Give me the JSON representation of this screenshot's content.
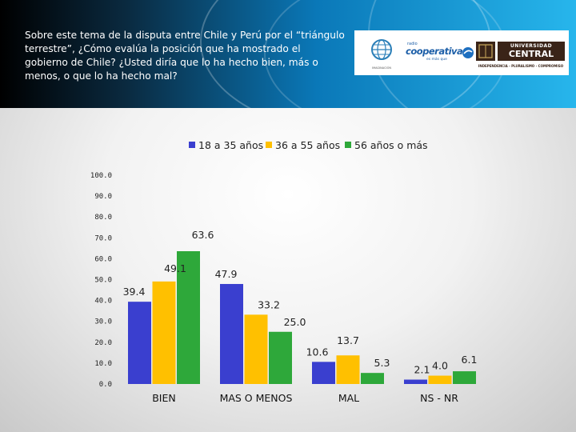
{
  "header": {
    "question": "Sobre este tema de la disputa entre Chile y Perú por el “triángulo terrestre”, ¿Cómo evalúa la posición que ha mostrado el gobierno de Chile? ¿Usted diría que lo ha hecho bien, más o menos, o que lo ha hecho mal?"
  },
  "logos": {
    "cooperativa": {
      "small": "radio",
      "main": "cooperativa",
      "sub": "es más que"
    },
    "imaginacion": {
      "text": "IMAGINACIÓN"
    },
    "universidad": {
      "line1": "UNIVERSIDAD",
      "line2": "CENTRAL",
      "tagline": "INDEPENDENCIA - PLURALISMO - COMPROMISO"
    }
  },
  "chart_data": {
    "type": "bar",
    "categories": [
      "BIEN",
      "MAS O MENOS",
      "MAL",
      "NS - NR"
    ],
    "series": [
      {
        "name": "18 a 35 años",
        "color": "#3a3fcf",
        "values": [
          39.4,
          47.9,
          10.6,
          2.1
        ],
        "labels": [
          "39.4",
          "47.9",
          "10.6",
          "2.1"
        ]
      },
      {
        "name": "36 a 55 años",
        "color": "#ffc000",
        "values": [
          49.1,
          33.2,
          13.7,
          4.0
        ],
        "labels": [
          "49.1",
          "33.2",
          "13.7",
          "4.0"
        ]
      },
      {
        "name": "56 años o más",
        "color": "#2ea83a",
        "values": [
          63.6,
          25.0,
          5.3,
          6.1
        ],
        "labels": [
          "63.6",
          "25.0",
          "5.3",
          "6.1"
        ]
      }
    ],
    "yticks": [
      "0.0",
      "10.0",
      "20.0",
      "30.0",
      "40.0",
      "50.0",
      "60.0",
      "70.0",
      "80.0",
      "90.0",
      "100.0"
    ],
    "ylim": [
      0,
      100
    ],
    "grid": false,
    "legend": "top-center"
  }
}
